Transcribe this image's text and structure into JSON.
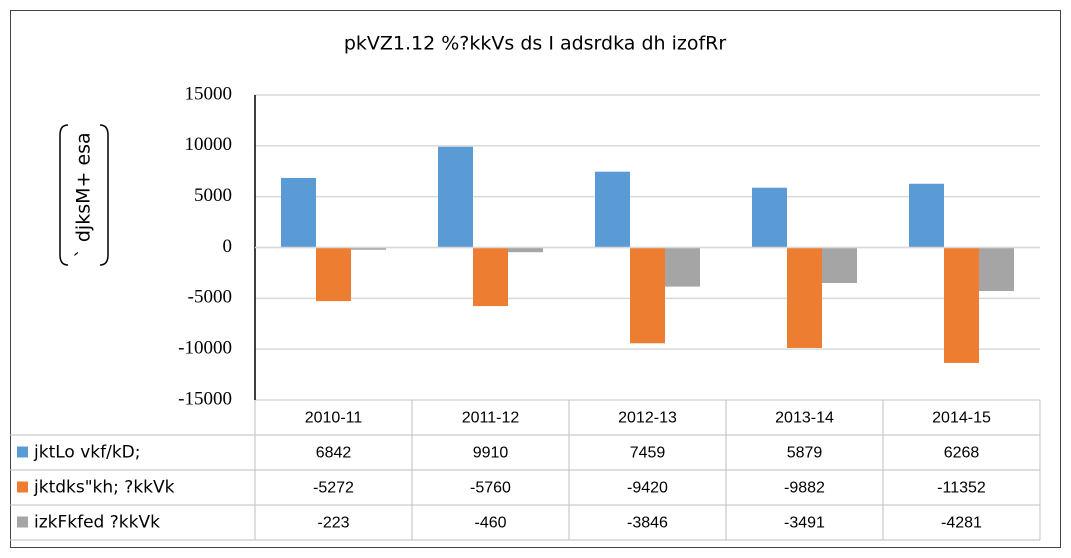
{
  "chart_data": {
    "type": "bar",
    "title": "pkVZ1.12 %?kkVs ds I adsrdka dh izofRr",
    "y_label": "` djksM+ esa",
    "categories": [
      "2010-11",
      "2011-12",
      "2012-13",
      "2013-14",
      "2014-15"
    ],
    "series": [
      {
        "name": "jktLo vkf/kD;",
        "color": "#5b9bd5",
        "values": [
          6842,
          9910,
          7459,
          5879,
          6268
        ]
      },
      {
        "name": "jktdks\"kh; ?kkVk",
        "color": "#ed7d31",
        "values": [
          -5272,
          -5760,
          -9420,
          -9882,
          -11352
        ]
      },
      {
        "name": "izkFkfed ?kkVk",
        "color": "#a5a5a5",
        "values": [
          -223,
          -460,
          -3846,
          -3491,
          -4281
        ]
      }
    ],
    "ylim": [
      -15000,
      15000
    ],
    "yticks": [
      -15000,
      -10000,
      -5000,
      0,
      5000,
      10000,
      15000
    ],
    "grid": true
  }
}
